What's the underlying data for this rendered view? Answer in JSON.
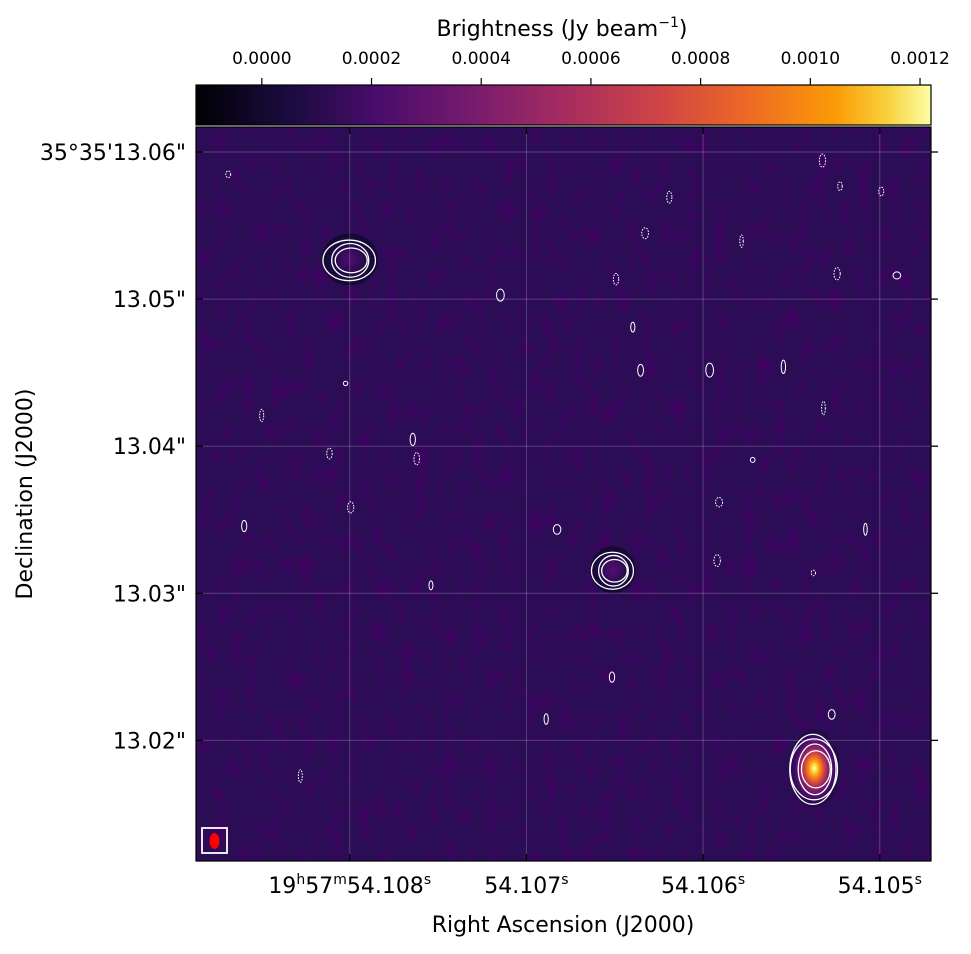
{
  "chart_data": {
    "type": "heatmap",
    "title": "",
    "colorbar": {
      "label": "Brightness (Jy beam",
      "label_sup": "−1",
      "label_close": ")",
      "colormap": "inferno",
      "range": [
        -0.00012,
        0.00122
      ],
      "ticks": [
        0.0,
        0.0002,
        0.0004,
        0.0006,
        0.0008,
        0.001,
        0.0012
      ],
      "tick_labels": [
        "0.0000",
        "0.0002",
        "0.0004",
        "0.0006",
        "0.0008",
        "0.0010",
        "0.0012"
      ]
    },
    "xlabel": "Right Ascension (J2000)",
    "ylabel": "Declination (J2000)",
    "x_ticks": [
      {
        "value": 54.108,
        "parts": [
          "19",
          "h",
          "57",
          "m",
          "54.108",
          "s"
        ]
      },
      {
        "value": 54.107,
        "parts": [
          "",
          "",
          "",
          "",
          "54.107",
          "s"
        ]
      },
      {
        "value": 54.106,
        "parts": [
          "",
          "",
          "",
          "",
          "54.106",
          "s"
        ]
      },
      {
        "value": 54.105,
        "parts": [
          "",
          "",
          "",
          "",
          "54.105",
          "s"
        ]
      }
    ],
    "xlim": [
      54.10887,
      54.10471
    ],
    "y_ticks": [
      {
        "value": 13.06,
        "label": "35°35'13.06\""
      },
      {
        "value": 13.05,
        "label": "13.05\""
      },
      {
        "value": 13.04,
        "label": "13.04\""
      },
      {
        "value": 13.03,
        "label": "13.03\""
      },
      {
        "value": 13.02,
        "label": "13.02\""
      }
    ],
    "ylim": [
      13.0118,
      13.0617
    ],
    "grid": true,
    "contour_levels_fraction_of_peak": [
      0.12,
      0.2,
      0.33,
      0.55
    ],
    "sources": [
      {
        "name": "source-upper-left",
        "ra_s": 54.108,
        "dec_s": 13.0527,
        "peak": 0.00022,
        "sx": 0.0001,
        "sy": 0.0011
      },
      {
        "name": "source-center",
        "ra_s": 54.10651,
        "dec_s": 13.0316,
        "peak": 0.00025,
        "sx": 8e-05,
        "sy": 0.001
      },
      {
        "name": "source-lower-right",
        "ra_s": 54.10537,
        "dec_s": 13.0181,
        "peak": 0.00122,
        "sx": 9e-05,
        "sy": 0.00165
      }
    ],
    "beam": {
      "color": "#ff0000",
      "box_color": "#ffffff"
    }
  }
}
